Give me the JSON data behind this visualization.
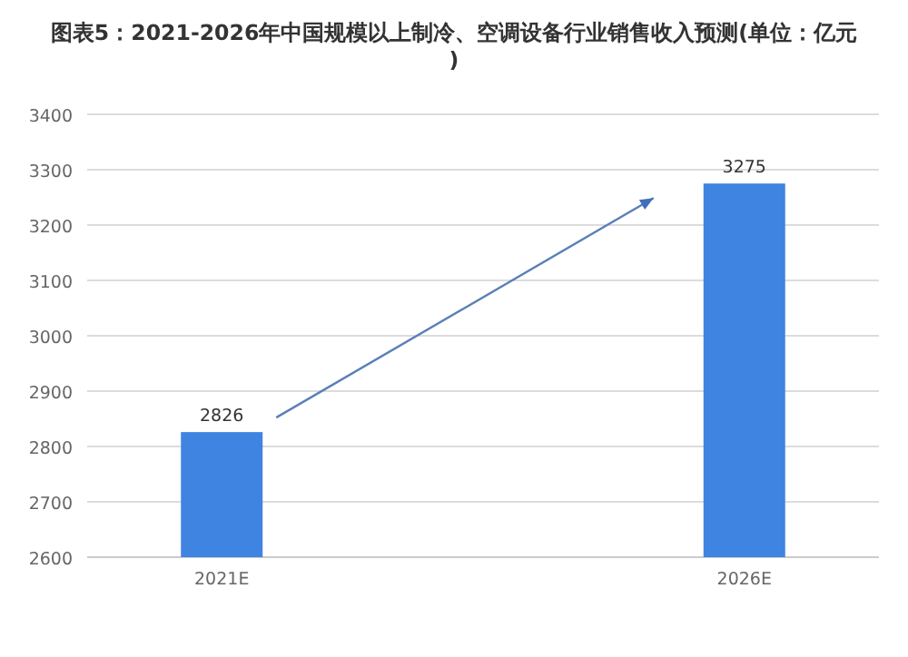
{
  "chart_data": {
    "type": "bar",
    "title": "图表5：2021-2026年中国规模以上制冷、空调设备行业销售收入预测(单位：亿元)",
    "categories": [
      "2021E",
      "2026E"
    ],
    "values": [
      2826,
      3275
    ],
    "color": "#3f84e0",
    "ylim": [
      2600,
      3400
    ],
    "yticks": [
      2600,
      2700,
      2800,
      2900,
      3000,
      3100,
      3200,
      3300,
      3400
    ],
    "grid": "y",
    "data_labels": true
  }
}
